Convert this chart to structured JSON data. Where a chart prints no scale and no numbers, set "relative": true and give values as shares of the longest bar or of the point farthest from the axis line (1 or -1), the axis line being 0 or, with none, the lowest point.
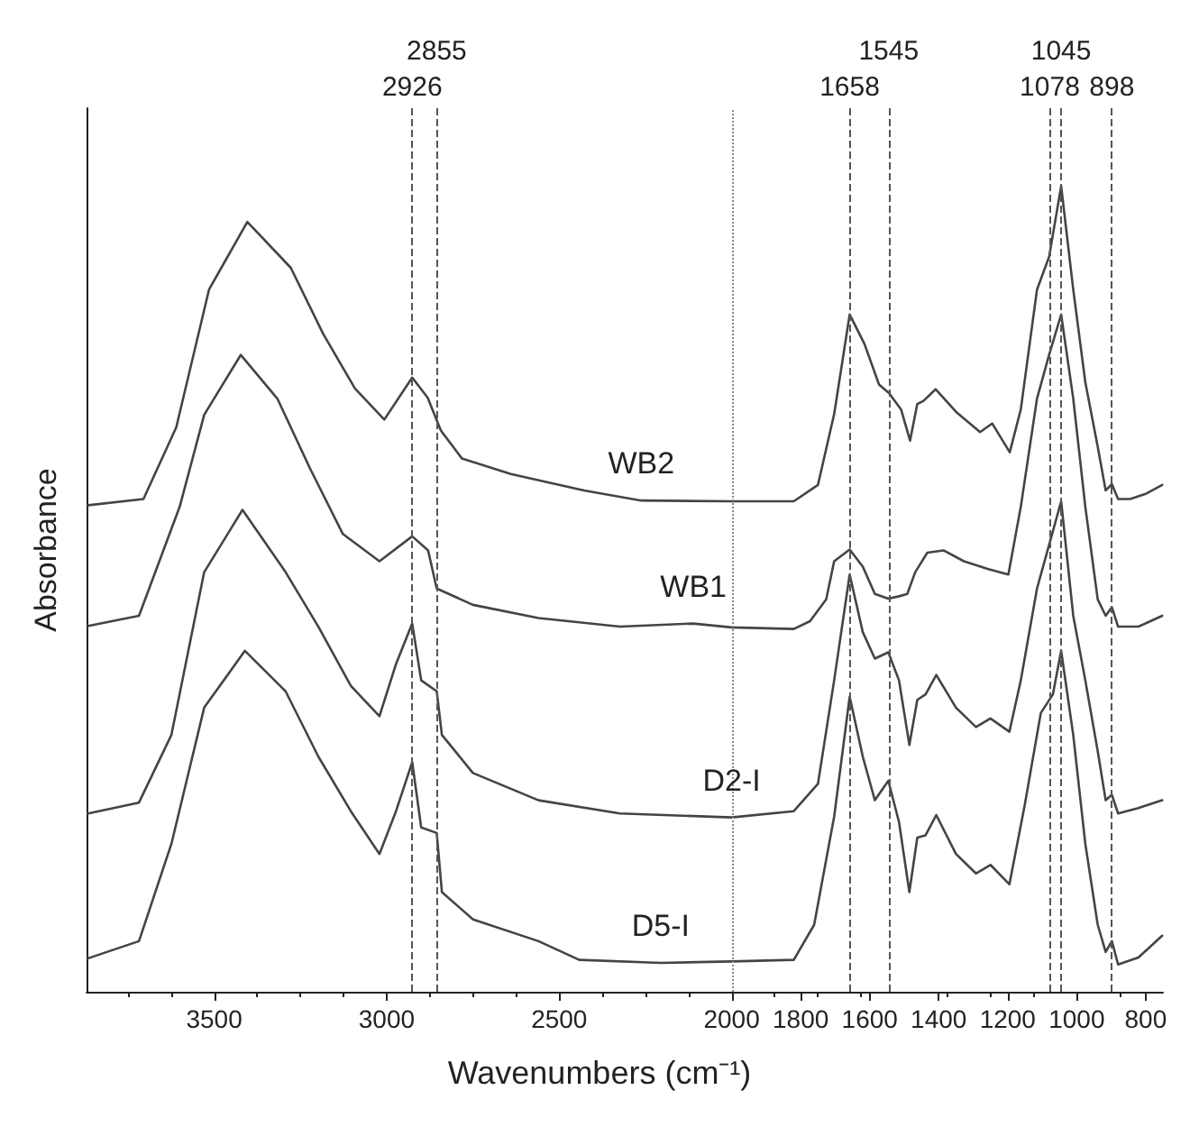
{
  "chart_data": {
    "type": "line",
    "relative": true,
    "xlabel": "Wavenumbers (cm⁻¹)",
    "ylabel": "Absorbance",
    "xlim": [
      3870,
      750
    ],
    "xticks": [
      3500,
      3000,
      2500,
      2000,
      1800,
      1600,
      1400,
      1200,
      1000,
      800
    ],
    "grid": false,
    "legend": false,
    "marker": "none",
    "line_style": "solid",
    "series": [
      {
        "name": "WB2",
        "color": "#444444",
        "x": [
          3865,
          3705,
          3610,
          3515,
          3404,
          3278,
          3184,
          3092,
          3007,
          2926,
          2881,
          2843,
          2782,
          2640,
          2428,
          2262,
          2000,
          1820,
          1750,
          1703,
          1658,
          1615,
          1573,
          1544,
          1509,
          1483,
          1462,
          1444,
          1409,
          1350,
          1280,
          1245,
          1194,
          1162,
          1115,
          1080,
          1045,
          1010,
          975,
          939,
          916,
          898,
          880,
          845,
          798,
          752
        ],
        "values": [
          0.59,
          0.598,
          0.69,
          0.867,
          0.954,
          0.895,
          0.81,
          0.74,
          0.7,
          0.754,
          0.728,
          0.686,
          0.65,
          0.63,
          0.609,
          0.596,
          0.595,
          0.595,
          0.616,
          0.707,
          0.835,
          0.797,
          0.745,
          0.734,
          0.713,
          0.673,
          0.72,
          0.724,
          0.739,
          0.71,
          0.684,
          0.695,
          0.658,
          0.713,
          0.867,
          0.909,
          1.0,
          0.867,
          0.748,
          0.665,
          0.609,
          0.617,
          0.598,
          0.598,
          0.605,
          0.616
        ]
      },
      {
        "name": "WB1",
        "color": "#444444",
        "x": [
          3865,
          3718,
          3600,
          3529,
          3423,
          3317,
          3222,
          3127,
          3021,
          2926,
          2880,
          2855,
          2750,
          2560,
          2324,
          2111,
          2000,
          1820,
          1773,
          1726,
          1703,
          1658,
          1620,
          1585,
          1546,
          1515,
          1491,
          1468,
          1433,
          1386,
          1327,
          1256,
          1198,
          1162,
          1115,
          1080,
          1045,
          1010,
          975,
          939,
          916,
          898,
          880,
          821,
          752
        ],
        "values": [
          0.435,
          0.448,
          0.588,
          0.706,
          0.783,
          0.727,
          0.637,
          0.553,
          0.518,
          0.55,
          0.532,
          0.483,
          0.462,
          0.445,
          0.434,
          0.438,
          0.433,
          0.431,
          0.441,
          0.469,
          0.518,
          0.533,
          0.511,
          0.476,
          0.47,
          0.473,
          0.476,
          0.504,
          0.529,
          0.532,
          0.518,
          0.508,
          0.501,
          0.588,
          0.727,
          0.783,
          0.835,
          0.727,
          0.588,
          0.469,
          0.448,
          0.459,
          0.434,
          0.434,
          0.448
        ]
      },
      {
        "name": "D2-I",
        "color": "#444444",
        "x": [
          3865,
          3718,
          3624,
          3529,
          3418,
          3293,
          3198,
          3104,
          3021,
          2973,
          2926,
          2900,
          2855,
          2840,
          2750,
          2560,
          2324,
          2000,
          1820,
          1750,
          1703,
          1658,
          1620,
          1585,
          1546,
          1515,
          1485,
          1462,
          1438,
          1407,
          1350,
          1292,
          1250,
          1195,
          1162,
          1115,
          1080,
          1045,
          1010,
          975,
          939,
          916,
          898,
          880,
          821,
          752
        ],
        "values": [
          0.194,
          0.208,
          0.295,
          0.504,
          0.584,
          0.504,
          0.434,
          0.358,
          0.319,
          0.386,
          0.438,
          0.365,
          0.351,
          0.295,
          0.246,
          0.211,
          0.194,
          0.189,
          0.197,
          0.232,
          0.365,
          0.501,
          0.427,
          0.393,
          0.401,
          0.365,
          0.282,
          0.34,
          0.347,
          0.372,
          0.33,
          0.305,
          0.316,
          0.299,
          0.365,
          0.483,
          0.539,
          0.595,
          0.448,
          0.365,
          0.274,
          0.211,
          0.218,
          0.194,
          0.201,
          0.211
        ]
      },
      {
        "name": "D5-I",
        "color": "#444444",
        "x": [
          3865,
          3718,
          3624,
          3529,
          3411,
          3293,
          3198,
          3104,
          3021,
          2973,
          2926,
          2900,
          2855,
          2840,
          2750,
          2560,
          2442,
          2206,
          2000,
          1820,
          1761,
          1703,
          1658,
          1620,
          1585,
          1546,
          1515,
          1485,
          1462,
          1438,
          1407,
          1350,
          1292,
          1250,
          1195,
          1151,
          1104,
          1069,
          1045,
          1010,
          975,
          939,
          916,
          898,
          880,
          821,
          752
        ],
        "values": [
          0.008,
          0.03,
          0.155,
          0.33,
          0.403,
          0.351,
          0.267,
          0.197,
          0.142,
          0.197,
          0.26,
          0.176,
          0.169,
          0.093,
          0.058,
          0.03,
          0.006,
          0.002,
          0.004,
          0.006,
          0.051,
          0.19,
          0.344,
          0.267,
          0.211,
          0.236,
          0.183,
          0.093,
          0.163,
          0.166,
          0.192,
          0.142,
          0.117,
          0.128,
          0.103,
          0.204,
          0.323,
          0.347,
          0.403,
          0.295,
          0.155,
          0.051,
          0.016,
          0.03,
          0.0,
          0.009,
          0.037
        ]
      }
    ],
    "ref_lines": [
      {
        "axis": "x",
        "value": 2926,
        "label": "2926",
        "color": "#555555",
        "line_style": "dashed"
      },
      {
        "axis": "x",
        "value": 2855,
        "label": "2855",
        "color": "#555555",
        "line_style": "dashed"
      },
      {
        "axis": "x",
        "value": 1658,
        "label": "1658",
        "color": "#555555",
        "line_style": "dashed"
      },
      {
        "axis": "x",
        "value": 1545,
        "label": "1545",
        "color": "#555555",
        "line_style": "dashed"
      },
      {
        "axis": "x",
        "value": 1078,
        "label": "1078",
        "color": "#555555",
        "line_style": "dashed"
      },
      {
        "axis": "x",
        "value": 1045,
        "label": "1045",
        "color": "#555555",
        "line_style": "dashed"
      },
      {
        "axis": "x",
        "value": 898,
        "label": "898",
        "color": "#555555",
        "line_style": "dashed"
      },
      {
        "axis": "x",
        "value": 2000,
        "color": "#888888",
        "line_style": "dotted"
      }
    ]
  }
}
